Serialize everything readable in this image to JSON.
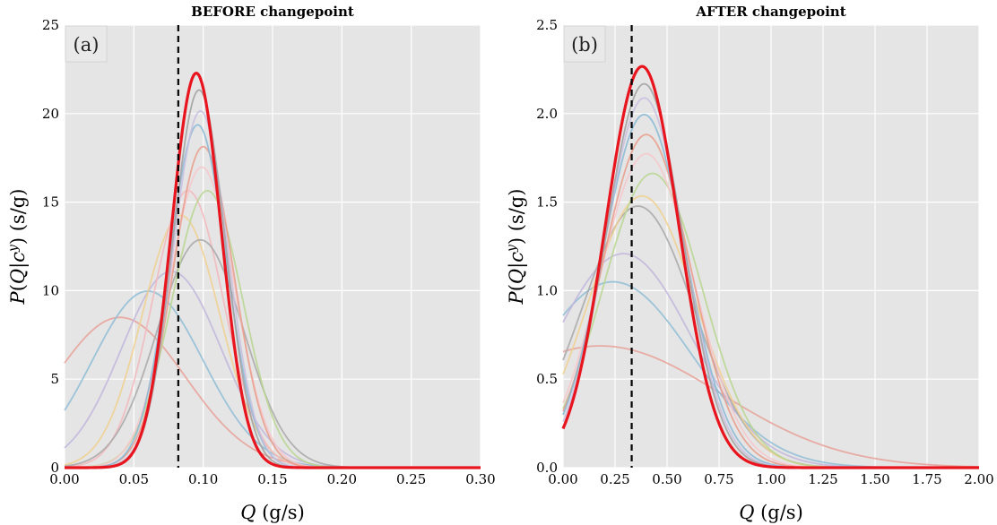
{
  "chart_data": [
    {
      "type": "line",
      "title": "BEFORE changepoint",
      "panel_label": "(a)",
      "xlabel": "Q (g/s)",
      "ylabel": "P(Q|c^y) (s/g)",
      "xlim": [
        0,
        0.3
      ],
      "ylim": [
        0,
        25
      ],
      "xticks": [
        "0.00",
        "0.05",
        "0.10",
        "0.15",
        "0.20",
        "0.25",
        "0.30"
      ],
      "yticks": [
        "0",
        "5",
        "10",
        "15",
        "20",
        "25"
      ],
      "grid": true,
      "legend": "none",
      "vline": 0.082,
      "series": [
        {
          "mu": 0.04,
          "sigma": 0.047,
          "color": "#e8a198"
        },
        {
          "mu": 0.06,
          "sigma": 0.04,
          "color": "#8fbdd6"
        },
        {
          "mu": 0.077,
          "sigma": 0.036,
          "color": "#c2b6dc"
        },
        {
          "mu": 0.084,
          "sigma": 0.028,
          "color": "#f0d08f"
        },
        {
          "mu": 0.089,
          "sigma": 0.0255,
          "color": "#f3b9bd"
        },
        {
          "mu": 0.098,
          "sigma": 0.031,
          "color": "#a8a8a8"
        },
        {
          "mu": 0.103,
          "sigma": 0.0255,
          "color": "#b8d68f"
        },
        {
          "mu": 0.099,
          "sigma": 0.0235,
          "color": "#f7c8cc"
        },
        {
          "mu": 0.1,
          "sigma": 0.022,
          "color": "#e99c8a"
        },
        {
          "mu": 0.096,
          "sigma": 0.0206,
          "color": "#88b8d6"
        },
        {
          "mu": 0.098,
          "sigma": 0.0198,
          "color": "#c8bee0"
        },
        {
          "mu": 0.097,
          "sigma": 0.0187,
          "color": "#a0a0a0"
        },
        {
          "mu": 0.095,
          "sigma": 0.0179,
          "color": "#e8141e",
          "highlight": true
        }
      ]
    },
    {
      "type": "line",
      "title": "AFTER changepoint",
      "panel_label": "(b)",
      "xlabel": "Q (g/s)",
      "ylabel": "P(Q|c^y) (s/g)",
      "xlim": [
        0,
        2.0
      ],
      "ylim": [
        0,
        2.5
      ],
      "xticks": [
        "0.00",
        "0.25",
        "0.50",
        "0.75",
        "1.00",
        "1.25",
        "1.50",
        "1.75",
        "2.00"
      ],
      "yticks": [
        "0.0",
        "0.5",
        "1.0",
        "1.5",
        "2.0",
        "2.5"
      ],
      "grid": true,
      "legend": "none",
      "vline": 0.33,
      "series": [
        {
          "mu": 0.18,
          "sigma": 0.58,
          "color": "#e8a198"
        },
        {
          "mu": 0.24,
          "sigma": 0.38,
          "color": "#8fbdd6"
        },
        {
          "mu": 0.29,
          "sigma": 0.33,
          "color": "#c2b6dc"
        },
        {
          "mu": 0.36,
          "sigma": 0.27,
          "color": "#a8a8a8"
        },
        {
          "mu": 0.38,
          "sigma": 0.26,
          "color": "#f0d08f"
        },
        {
          "mu": 0.43,
          "sigma": 0.24,
          "color": "#b8d68f"
        },
        {
          "mu": 0.4,
          "sigma": 0.225,
          "color": "#f7c8cc"
        },
        {
          "mu": 0.4,
          "sigma": 0.212,
          "color": "#e99c8a"
        },
        {
          "mu": 0.39,
          "sigma": 0.2,
          "color": "#88b8d6"
        },
        {
          "mu": 0.39,
          "sigma": 0.191,
          "color": "#c8bee0"
        },
        {
          "mu": 0.39,
          "sigma": 0.184,
          "color": "#a0a0a0"
        },
        {
          "mu": 0.38,
          "sigma": 0.176,
          "color": "#e8141e",
          "highlight": true
        }
      ]
    }
  ]
}
